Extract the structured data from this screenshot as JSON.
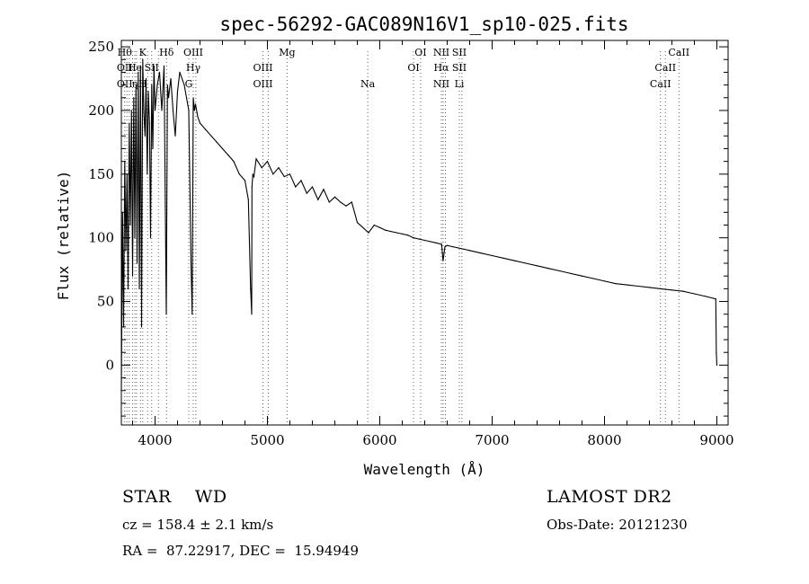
{
  "chart_data": {
    "type": "line",
    "title": "spec-56292-GAC089N16V1_sp10-025.fits",
    "xlabel": "Wavelength (Å)",
    "ylabel": "Flux (relative)",
    "xlim": [
      3700,
      9100
    ],
    "ylim": [
      -47,
      255
    ],
    "x_ticks": [
      4000,
      5000,
      6000,
      7000,
      8000,
      9000
    ],
    "x_tick_labels": [
      "4000",
      "5000",
      "6000",
      "7000",
      "8000",
      "9000"
    ],
    "y_ticks": [
      0,
      50,
      100,
      150,
      200,
      250
    ],
    "y_tick_labels": [
      "0",
      "50",
      "100",
      "150",
      "200",
      "250"
    ],
    "grid": false,
    "series": [
      {
        "color": "#000000",
        "x": [
          3700,
          3710,
          3720,
          3730,
          3740,
          3750,
          3760,
          3770,
          3780,
          3790,
          3800,
          3810,
          3820,
          3830,
          3840,
          3850,
          3860,
          3870,
          3880,
          3890,
          3900,
          3910,
          3920,
          3930,
          3940,
          3950,
          3960,
          3970,
          3980,
          3990,
          4000,
          4020,
          4040,
          4060,
          4080,
          4100,
          4110,
          4120,
          4140,
          4160,
          4180,
          4200,
          4220,
          4240,
          4260,
          4280,
          4300,
          4320,
          4330,
          4340,
          4350,
          4360,
          4380,
          4400,
          4450,
          4500,
          4550,
          4600,
          4650,
          4700,
          4750,
          4800,
          4830,
          4850,
          4860,
          4862,
          4870,
          4880,
          4900,
          4950,
          5000,
          5050,
          5100,
          5150,
          5200,
          5250,
          5300,
          5350,
          5400,
          5450,
          5500,
          5550,
          5600,
          5650,
          5700,
          5750,
          5800,
          5850,
          5900,
          5950,
          6000,
          6050,
          6100,
          6150,
          6200,
          6250,
          6300,
          6350,
          6400,
          6450,
          6500,
          6550,
          6563,
          6580,
          6600,
          6650,
          6700,
          6750,
          6800,
          6900,
          7000,
          7100,
          7200,
          7300,
          7400,
          7500,
          7600,
          7700,
          7800,
          7900,
          8000,
          8100,
          8200,
          8300,
          8400,
          8500,
          8600,
          8700,
          8800,
          8900,
          8990,
          8995,
          9000
        ],
        "y": [
          -20,
          120,
          30,
          160,
          90,
          150,
          60,
          190,
          110,
          200,
          70,
          210,
          100,
          220,
          80,
          230,
          60,
          235,
          30,
          240,
          200,
          180,
          225,
          150,
          215,
          190,
          100,
          220,
          170,
          235,
          200,
          220,
          230,
          200,
          235,
          40,
          220,
          210,
          225,
          200,
          180,
          215,
          230,
          225,
          220,
          210,
          200,
          80,
          40,
          210,
          200,
          205,
          195,
          190,
          185,
          180,
          175,
          170,
          165,
          160,
          150,
          145,
          130,
          60,
          40,
          140,
          150,
          148,
          162,
          155,
          160,
          150,
          155,
          148,
          150,
          140,
          145,
          135,
          140,
          130,
          138,
          128,
          132,
          128,
          125,
          128,
          112,
          108,
          104,
          110,
          108,
          106,
          105,
          104,
          103,
          102,
          100,
          99,
          98,
          97,
          96,
          95,
          82,
          93,
          94,
          93,
          92,
          91,
          90,
          88,
          86,
          84,
          82,
          80,
          78,
          76,
          74,
          72,
          70,
          68,
          66,
          64,
          63,
          62,
          61,
          60,
          59,
          58,
          56,
          54,
          52,
          10,
          0
        ]
      }
    ],
    "line_marks": [
      {
        "x": 3730,
        "top": "Hθ",
        "mid": "OII",
        "low": "OII"
      },
      {
        "x": 3750,
        "top": "",
        "mid": "",
        "low": ""
      },
      {
        "x": 3770,
        "top": "",
        "mid": "",
        "low": ""
      },
      {
        "x": 3800,
        "top": "",
        "mid": "",
        "low": ""
      },
      {
        "x": 3820,
        "top": "",
        "mid": "He",
        "low": "η"
      },
      {
        "x": 3835,
        "top": "",
        "mid": "",
        "low": ""
      },
      {
        "x": 3870,
        "top": "",
        "mid": "",
        "low": ""
      },
      {
        "x": 3890,
        "top": "K",
        "mid": "",
        "low": "H"
      },
      {
        "x": 3934,
        "top": "",
        "mid": "",
        "low": ""
      },
      {
        "x": 3970,
        "top": "",
        "mid": "SII",
        "low": ""
      },
      {
        "x": 4030,
        "top": "",
        "mid": "",
        "low": ""
      },
      {
        "x": 4102,
        "top": "Hδ",
        "mid": "",
        "low": ""
      },
      {
        "x": 4300,
        "top": "",
        "mid": "",
        "low": "G"
      },
      {
        "x": 4340,
        "top": "OIII",
        "mid": "Hγ",
        "low": ""
      },
      {
        "x": 4363,
        "top": "",
        "mid": "",
        "low": ""
      },
      {
        "x": 4960,
        "top": "",
        "mid": "OIII",
        "low": "OIII"
      },
      {
        "x": 5007,
        "top": "",
        "mid": "",
        "low": ""
      },
      {
        "x": 5175,
        "top": "Mg",
        "mid": "",
        "low": ""
      },
      {
        "x": 5893,
        "top": "",
        "mid": "",
        "low": "Na"
      },
      {
        "x": 6300,
        "top": "",
        "mid": "OI",
        "low": ""
      },
      {
        "x": 6363,
        "top": "OI",
        "mid": "",
        "low": ""
      },
      {
        "x": 6548,
        "top": "NII",
        "mid": "Hα",
        "low": "NII"
      },
      {
        "x": 6563,
        "top": "",
        "mid": "",
        "low": ""
      },
      {
        "x": 6584,
        "top": "",
        "mid": "",
        "low": ""
      },
      {
        "x": 6708,
        "top": "SII",
        "mid": "SII",
        "low": "Li"
      },
      {
        "x": 6731,
        "top": "",
        "mid": "",
        "low": ""
      },
      {
        "x": 8498,
        "top": "",
        "mid": "",
        "low": "CaII"
      },
      {
        "x": 8542,
        "top": "",
        "mid": "CaII",
        "low": ""
      },
      {
        "x": 8662,
        "top": "CaII",
        "mid": "",
        "low": ""
      }
    ]
  },
  "info": {
    "object": "STAR    WD",
    "survey": "LAMOST DR2",
    "redshift": "cz = 158.4 ± 2.1 km/s",
    "obs_date": "Obs-Date: 20121230",
    "coords": "RA =  87.22917, DEC =  15.94949"
  }
}
